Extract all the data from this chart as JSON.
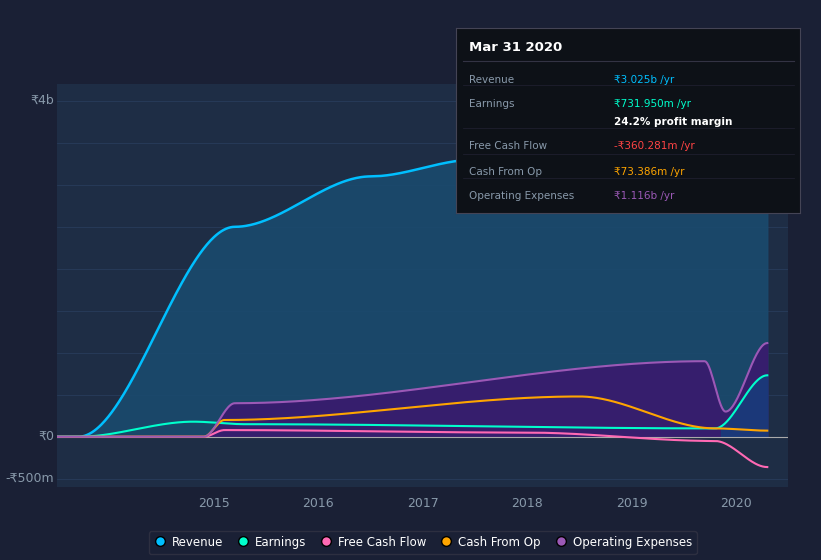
{
  "bg_color": "#1a2035",
  "plot_bg_color": "#1e2d45",
  "grid_color": "#2a3f5f",
  "axis_label_color": "#8899aa",
  "ylabel_top": "₹4b",
  "ylabel_zero": "₹0",
  "ylabel_bottom": "-₹500m",
  "ylim": [
    -600000000,
    4200000000
  ],
  "xlim": [
    2013.5,
    2020.5
  ],
  "revenue_color": "#00bfff",
  "earnings_color": "#00ffcc",
  "fcf_color": "#ff69b4",
  "cashop_color": "#ffa500",
  "opex_color": "#9b59b6",
  "revenue_fill": "#1a4a6e",
  "opex_fill": "#3a1a6e",
  "info_box": {
    "title": "Mar 31 2020",
    "rows": [
      {
        "label": "Revenue",
        "value": "₹3.025b /yr",
        "value_color": "#00bfff"
      },
      {
        "label": "Earnings",
        "value": "₹731.950m /yr",
        "value_color": "#00ffcc"
      },
      {
        "label": "",
        "value": "24.2% profit margin",
        "value_color": "#ffffff",
        "bold": true
      },
      {
        "label": "Free Cash Flow",
        "value": "-₹360.281m /yr",
        "value_color": "#ff4444"
      },
      {
        "label": "Cash From Op",
        "value": "₹73.386m /yr",
        "value_color": "#ffa500"
      },
      {
        "label": "Operating Expenses",
        "value": "₹1.116b /yr",
        "value_color": "#9b59b6"
      }
    ]
  },
  "legend": [
    {
      "label": "Revenue",
      "color": "#00bfff"
    },
    {
      "label": "Earnings",
      "color": "#00ffcc"
    },
    {
      "label": "Free Cash Flow",
      "color": "#ff69b4"
    },
    {
      "label": "Cash From Op",
      "color": "#ffa500"
    },
    {
      "label": "Operating Expenses",
      "color": "#9b59b6"
    }
  ]
}
